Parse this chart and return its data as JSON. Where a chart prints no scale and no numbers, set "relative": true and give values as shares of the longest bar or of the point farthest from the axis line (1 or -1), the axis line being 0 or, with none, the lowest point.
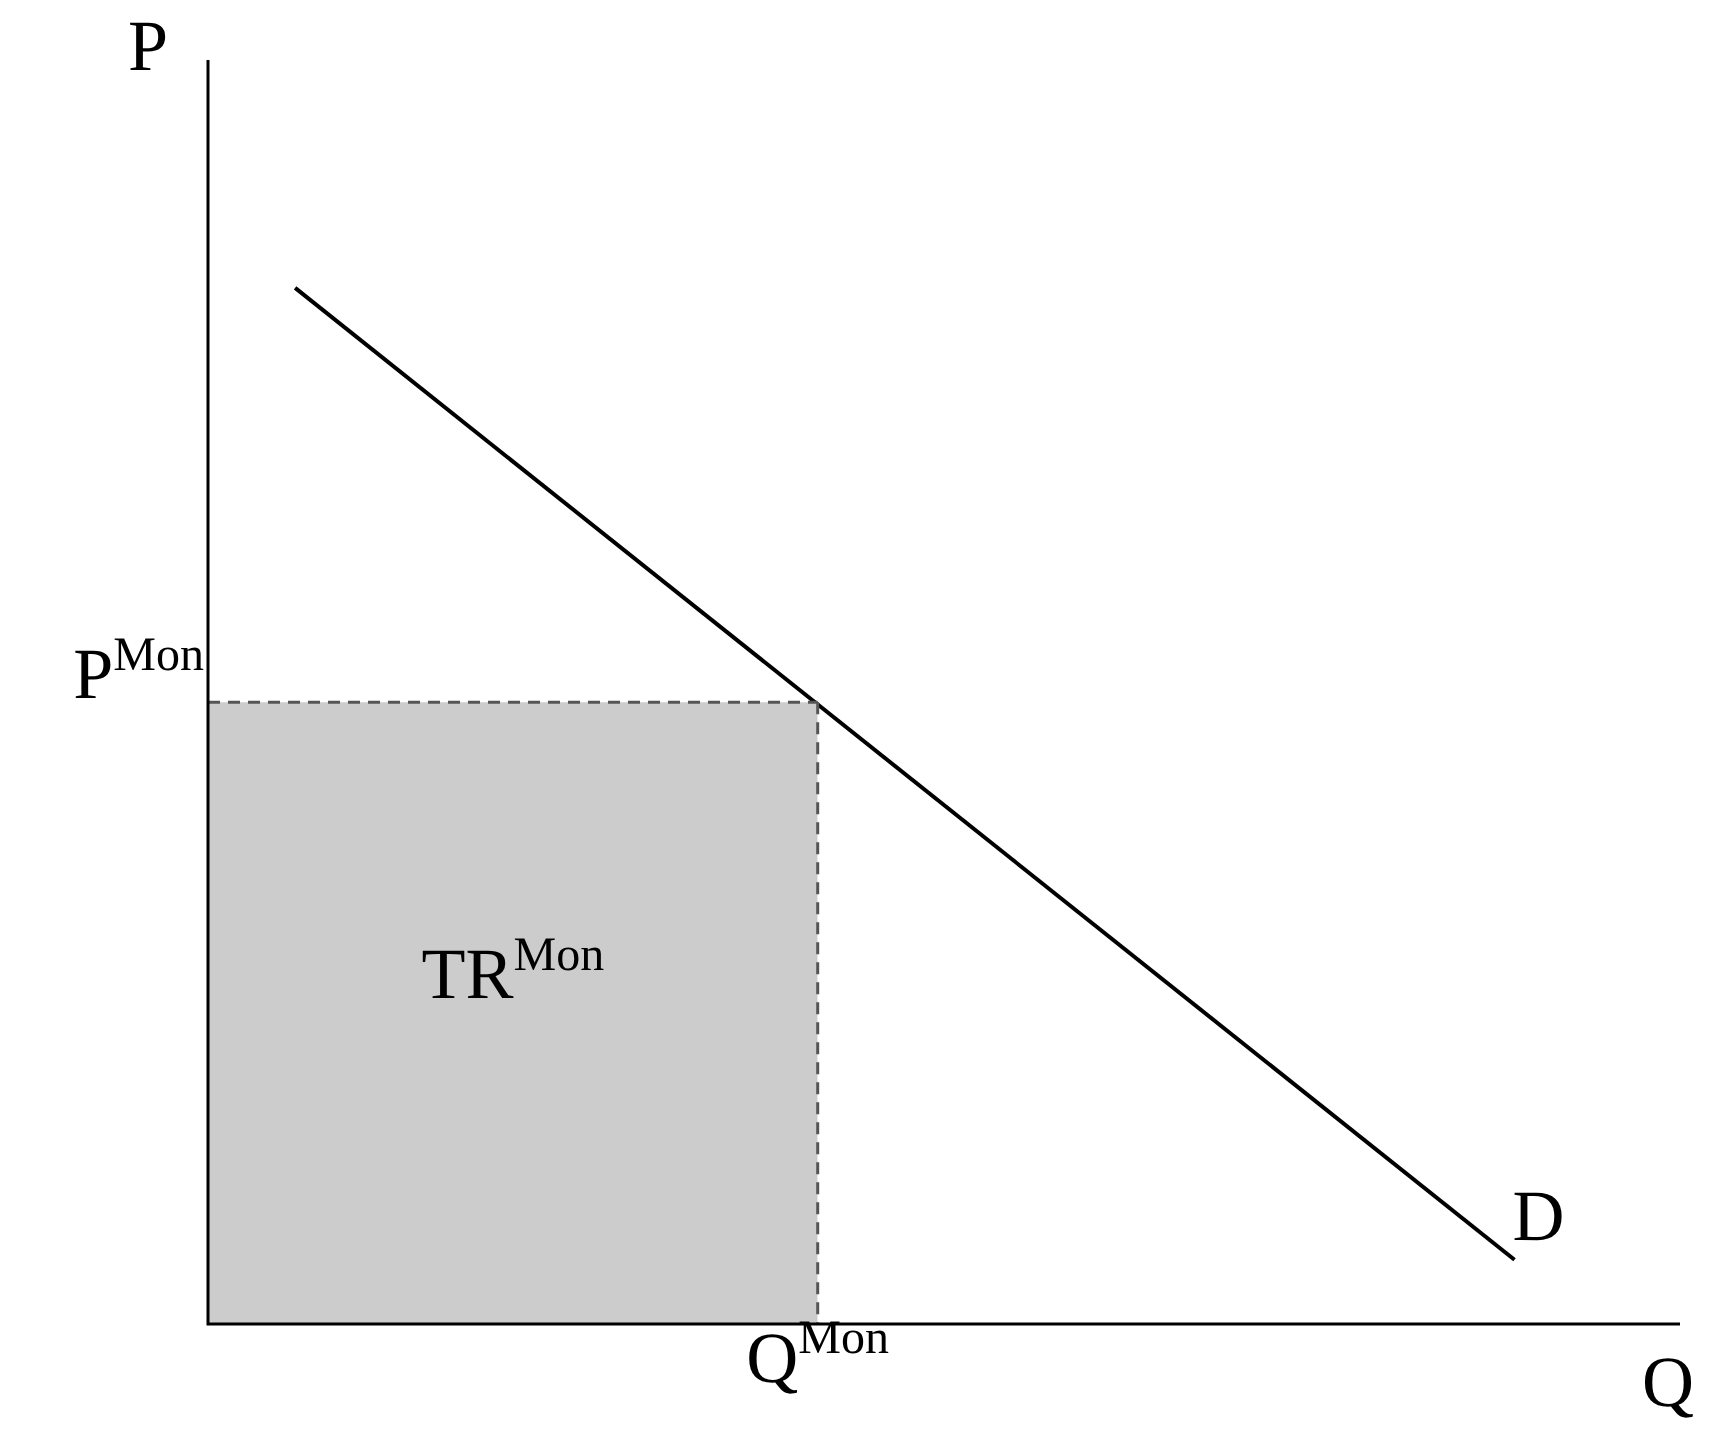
{
  "chart_data": {
    "type": "line",
    "relative": true,
    "xlabel": "Q",
    "ylabel": "P",
    "categories": [
      null,
      null,
      null,
      null,
      null,
      null,
      null,
      null,
      null,
      null,
      null,
      null,
      null,
      null,
      null,
      null,
      null
    ],
    "series": [
      {
        "type": "area",
        "line_style": "dashed",
        "values": [
          0.6,
          0.6,
          0.6,
          0.6,
          0.6,
          0.6,
          0.6,
          0.6,
          null,
          null,
          null,
          null,
          null,
          null,
          null,
          null,
          null
        ],
        "color": "#cccccc"
      },
      {
        "values": [
          null,
          1,
          null,
          null,
          null,
          null,
          null,
          null,
          null,
          null,
          null,
          null,
          null,
          null,
          null,
          0.062,
          null
        ],
        "color": "#000000"
      }
    ],
    "annotations": [
      "P$^{Mon}$",
      "Q$^{Mon}$",
      "TR$^{Mon}$",
      "D"
    ]
  }
}
